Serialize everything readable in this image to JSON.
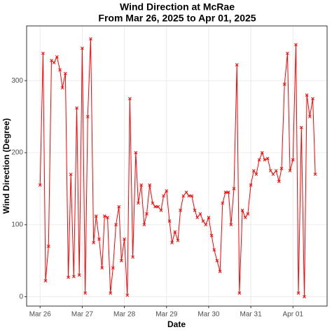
{
  "chart_data": {
    "type": "line",
    "title": "Wind Direction at McRae",
    "subtitle": "From Mar 26, 2025 to Apr 01, 2025",
    "x_label": "Date",
    "y_label": "Wind Direction (Degree)",
    "x": [
      0,
      0.07,
      0.13,
      0.2,
      0.27,
      0.33,
      0.4,
      0.47,
      0.53,
      0.6,
      0.67,
      0.73,
      0.8,
      0.87,
      0.93,
      1,
      1.07,
      1.13,
      1.2,
      1.27,
      1.33,
      1.4,
      1.47,
      1.53,
      1.6,
      1.67,
      1.73,
      1.8,
      1.87,
      1.93,
      2,
      2.07,
      2.13,
      2.2,
      2.27,
      2.33,
      2.4,
      2.47,
      2.53,
      2.6,
      2.67,
      2.73,
      2.8,
      2.87,
      2.93,
      3,
      3.07,
      3.13,
      3.2,
      3.27,
      3.33,
      3.4,
      3.47,
      3.53,
      3.6,
      3.67,
      3.73,
      3.8,
      3.87,
      3.93,
      4,
      4.07,
      4.13,
      4.2,
      4.27,
      4.33,
      4.4,
      4.47,
      4.53,
      4.6,
      4.67,
      4.73,
      4.8,
      4.87,
      4.93,
      5,
      5.07,
      5.13,
      5.2,
      5.27,
      5.33,
      5.4,
      5.47,
      5.53,
      5.6,
      5.67,
      5.73,
      5.8,
      5.87,
      5.93,
      6,
      6.07,
      6.13,
      6.2,
      6.27,
      6.33,
      6.4,
      6.47,
      6.53
    ],
    "series": [
      {
        "name": "Wind Direction",
        "color": "#ff0000",
        "values": [
          155,
          338,
          22,
          70,
          328,
          325,
          333,
          315,
          290,
          310,
          27,
          170,
          28,
          262,
          30,
          345,
          5,
          250,
          358,
          75,
          112,
          80,
          40,
          112,
          110,
          5,
          40,
          100,
          125,
          50,
          80,
          2,
          275,
          55,
          200,
          130,
          155,
          100,
          115,
          155,
          130,
          125,
          125,
          120,
          140,
          147,
          105,
          75,
          90,
          78,
          120,
          140,
          145,
          140,
          140,
          120,
          110,
          115,
          105,
          100,
          110,
          85,
          65,
          50,
          35,
          130,
          145,
          145,
          100,
          150,
          322,
          5,
          120,
          110,
          115,
          155,
          175,
          170,
          190,
          200,
          190,
          192,
          175,
          170,
          175,
          160,
          178,
          295,
          338,
          175,
          190,
          350,
          5,
          235,
          0,
          280,
          250,
          275,
          170
        ]
      }
    ],
    "xlim": [
      -0.32,
      6.81
    ],
    "xticks": [
      {
        "value": 0,
        "label": "Mar 26"
      },
      {
        "value": 1,
        "label": "Mar 27"
      },
      {
        "value": 2,
        "label": "Mar 28"
      },
      {
        "value": 3,
        "label": "Mar 29"
      },
      {
        "value": 4,
        "label": "Mar 30"
      },
      {
        "value": 5,
        "label": "Mar 31"
      },
      {
        "value": 6,
        "label": "Apr 01"
      }
    ],
    "ylim": [
      -13,
      376
    ],
    "yticks": [
      0,
      100,
      200,
      300
    ],
    "grid": true
  }
}
